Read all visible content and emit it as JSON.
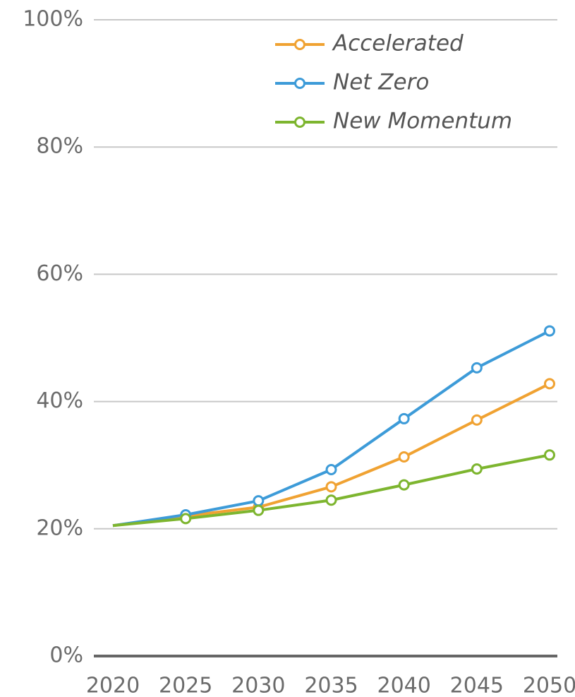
{
  "chart_data": {
    "type": "line",
    "x": [
      2020,
      2025,
      2030,
      2035,
      2040,
      2045,
      2050
    ],
    "series": [
      {
        "name": "Accelerated",
        "color": "#f0a232",
        "values": [
          20.5,
          22.0,
          23.4,
          26.6,
          31.3,
          37.1,
          42.8
        ]
      },
      {
        "name": "Net Zero",
        "color": "#3d9bd8",
        "values": [
          20.5,
          22.2,
          24.4,
          29.3,
          37.3,
          45.3,
          51.1
        ]
      },
      {
        "name": "New Momentum",
        "color": "#7db52f",
        "values": [
          20.5,
          21.6,
          22.9,
          24.5,
          26.9,
          29.4,
          31.6
        ]
      }
    ],
    "xlim": [
      2020,
      2050
    ],
    "xticks": [
      2020,
      2025,
      2030,
      2035,
      2040,
      2045,
      2050
    ],
    "ylim": [
      0,
      100
    ],
    "yticks": [
      {
        "value": 0,
        "label": "0%"
      },
      {
        "value": 20,
        "label": "20%"
      },
      {
        "value": 40,
        "label": "40%"
      },
      {
        "value": 60,
        "label": "60%"
      },
      {
        "value": 80,
        "label": "80%"
      },
      {
        "value": 100,
        "label": "100%"
      }
    ],
    "grid": true,
    "legend": "top-right"
  }
}
